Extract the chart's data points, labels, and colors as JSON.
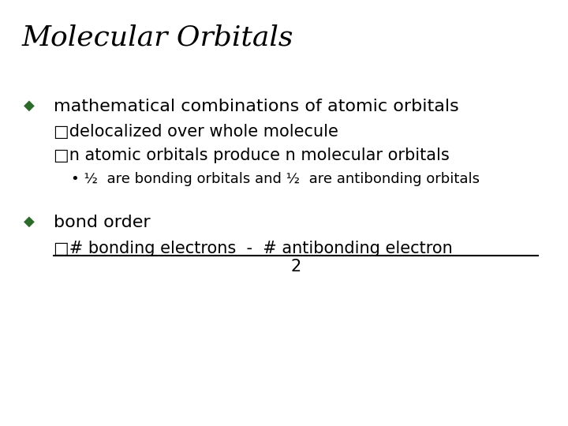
{
  "title": "Molecular Orbitals",
  "background_color": "#ffffff",
  "title_color": "#000000",
  "title_fontsize": 26,
  "title_style": "italic",
  "title_font": "serif",
  "bullet_color": "#2d6b2d",
  "text_color": "#000000",
  "bullet1_main": "mathematical combinations of atomic orbitals",
  "bullet1_sub1": "□delocalized over whole molecule",
  "bullet1_sub2": "□n atomic orbitals produce n molecular orbitals",
  "bullet1_sub3": "• ½  are bonding orbitals and ½  are antibonding orbitals",
  "bullet2_main": "bond order",
  "bullet2_sub1": "□# bonding electrons  -  # antibonding electron",
  "bullet2_sub2": "2",
  "main_fontsize": 16,
  "sub_fontsize": 15,
  "sub3_fontsize": 13,
  "bullet_fontsize": 13
}
